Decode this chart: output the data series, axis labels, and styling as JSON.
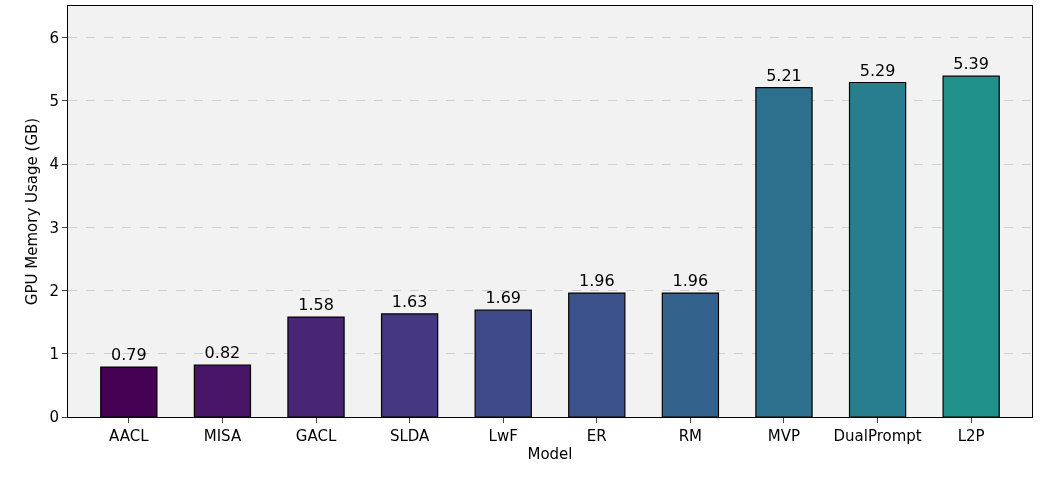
{
  "chart_data": {
    "type": "bar",
    "xlabel": "Model",
    "ylabel": "GPU Memory Usage (GB)",
    "categories": [
      "AACL",
      "MISA",
      "GACL",
      "SLDA",
      "LwF",
      "ER",
      "RM",
      "MVP",
      "DualPrompt",
      "L2P"
    ],
    "values": [
      0.79,
      0.82,
      1.58,
      1.63,
      1.69,
      1.96,
      1.96,
      5.21,
      5.29,
      5.39
    ],
    "colors": [
      "#440154",
      "#481467",
      "#482575",
      "#453781",
      "#3e4a89",
      "#3b528b",
      "#33638d",
      "#2d708e",
      "#287d8e",
      "#21918c"
    ],
    "ylim": [
      0,
      6.5
    ],
    "yticks": [
      0,
      1,
      2,
      3,
      4,
      5,
      6
    ],
    "grid": "y",
    "data_labels": true
  }
}
